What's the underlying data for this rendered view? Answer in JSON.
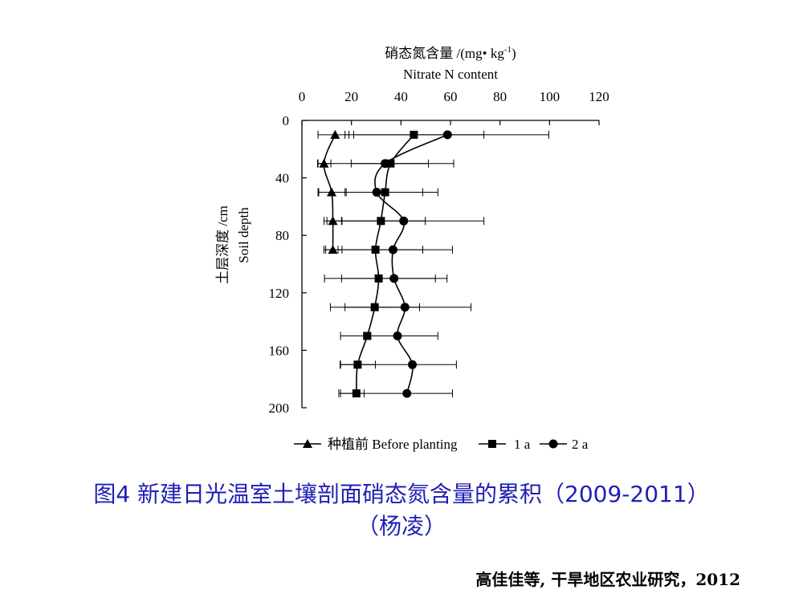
{
  "chart_data": {
    "type": "line",
    "x_axis_title_cn": "硝态氮含量 /(mg• kg",
    "x_axis_title_sup": "-1",
    "x_axis_title_close": ")",
    "x_axis_title_en": "Nitrate N content",
    "y_axis_title_cn": "土层深度 /cm",
    "y_axis_title_en": "Soil depth",
    "xlim": [
      0,
      120
    ],
    "ylim": [
      0,
      200
    ],
    "x_ticks": [
      "0",
      "20",
      "40",
      "60",
      "80",
      "100",
      "120"
    ],
    "y_ticks": [
      "0",
      "40",
      "80",
      "120",
      "160",
      "200"
    ],
    "legend_position": "bottom",
    "series": [
      {
        "name": "种植前 Before planting",
        "marker": "triangle",
        "points": [
          {
            "x": 13.4,
            "y": 10,
            "xerr_low": 6.5,
            "xerr_high": 19
          },
          {
            "x": 8.9,
            "y": 30,
            "xerr_low": 6.5,
            "xerr_high": 11.7
          },
          {
            "x": 12,
            "y": 50,
            "xerr_low": 6.5,
            "xerr_high": 17.4
          },
          {
            "x": 12.5,
            "y": 70,
            "xerr_low": 8.9,
            "xerr_high": 16.2
          },
          {
            "x": 12.5,
            "y": 90,
            "xerr_low": 8.9,
            "xerr_high": 16.2
          }
        ]
      },
      {
        "name": "1 a",
        "marker": "square",
        "points": [
          {
            "x": 45.2,
            "y": 10,
            "xerr_low": 20.9,
            "xerr_high": 73.5
          },
          {
            "x": 35.8,
            "y": 30,
            "xerr_low": 19.9,
            "xerr_high": 51.1
          },
          {
            "x": 33.6,
            "y": 50,
            "xerr_low": 17.9,
            "xerr_high": 48.8
          },
          {
            "x": 31.9,
            "y": 70,
            "xerr_low": 16,
            "xerr_high": 49.8
          },
          {
            "x": 29.7,
            "y": 90,
            "xerr_low": 14.6,
            "xerr_high": 48.8
          },
          {
            "x": 31,
            "y": 110,
            "xerr_low": 16,
            "xerr_high": 53.9
          },
          {
            "x": 29.4,
            "y": 130,
            "xerr_low": 17.4,
            "xerr_high": 47.5
          },
          {
            "x": 26.4,
            "y": 150,
            "xerr_low": 24.9,
            "xerr_high": 39.3
          },
          {
            "x": 22.5,
            "y": 170,
            "xerr_low": 15.4,
            "xerr_high": 29.7
          },
          {
            "x": 22,
            "y": 190,
            "xerr_low": 14.9,
            "xerr_high": 25.1
          }
        ]
      },
      {
        "name": "2 a",
        "marker": "circle",
        "points": [
          {
            "x": 58.8,
            "y": 10,
            "xerr_low": 17.4,
            "xerr_high": 99.7
          },
          {
            "x": 33.6,
            "y": 30,
            "xerr_low": 6.3,
            "xerr_high": 61.3
          },
          {
            "x": 30.2,
            "y": 50,
            "xerr_low": 6.8,
            "xerr_high": 54.9
          },
          {
            "x": 41.1,
            "y": 70,
            "xerr_low": 10.1,
            "xerr_high": 73.5
          },
          {
            "x": 36.8,
            "y": 90,
            "xerr_low": 9.6,
            "xerr_high": 60.8
          },
          {
            "x": 37.2,
            "y": 110,
            "xerr_low": 9.1,
            "xerr_high": 58.6
          },
          {
            "x": 41.6,
            "y": 130,
            "xerr_low": 11.5,
            "xerr_high": 68.3
          },
          {
            "x": 38.6,
            "y": 150,
            "xerr_low": 15.6,
            "xerr_high": 54.9
          },
          {
            "x": 44.6,
            "y": 170,
            "xerr_low": 15.6,
            "xerr_high": 62.4
          },
          {
            "x": 42.4,
            "y": 190,
            "xerr_low": 15.6,
            "xerr_high": 60.8
          }
        ]
      }
    ]
  },
  "caption": {
    "line1": "图4 新建日光温室土壤剖面硝态氮含量的累积（2009-2011）",
    "line2": "（杨凌）"
  },
  "citation": "高佳佳等, 干旱地区农业研究，2012"
}
